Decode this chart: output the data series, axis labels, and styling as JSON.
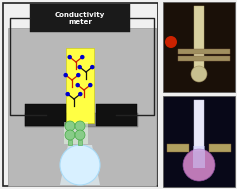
{
  "fig_bg": "#f0f0f0",
  "outer_border_color": "#888888",
  "title_box_color": "#1a1a1a",
  "title_text": "Conductivity\nmeter",
  "title_text_color": "#ffffff",
  "gray_panel_color": "#b8b8b8",
  "gray_panel_edge": "#999999",
  "yellow_strip_color": "#ffff44",
  "black_electrode_color": "#111111",
  "dark_gray_bar_color": "#888888",
  "circle_color": "#d8f0ff",
  "circle_edge": "#aadcf8",
  "wire_color": "#222222",
  "green_flask_color": "#88cc88",
  "green_flask_edge": "#44aa44",
  "antibody_colors": {
    "black": "#111111",
    "red": "#cc2200",
    "blue": "#0000cc"
  },
  "photo1_bg": "#1a1008",
  "photo1_strip_color": "#d8d0a0",
  "photo1_ball_color": "#c8c090",
  "photo1_red": "#cc2200",
  "photo1_elec_color": "#a09060",
  "photo2_bg": "#080818",
  "photo2_strip_color": "#e8e8f8",
  "photo2_glow_color": "#c880c0",
  "photo2_elec_color": "#b0a060",
  "gap_color": "#f0f0f0"
}
